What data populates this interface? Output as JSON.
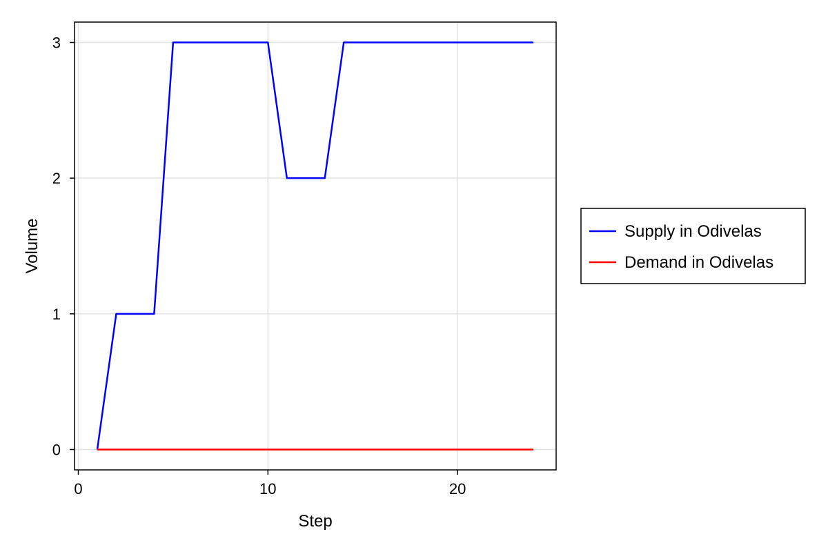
{
  "chart_data": {
    "type": "line",
    "xlabel": "Step",
    "ylabel": "Volume",
    "xlim": [
      -0.2,
      25.2
    ],
    "ylim": [
      -0.15,
      3.15
    ],
    "xticks": [
      0,
      10,
      20
    ],
    "yticks": [
      0,
      1,
      2,
      3
    ],
    "grid": true,
    "legend_position": "right",
    "series": [
      {
        "name": "Supply in Odivelas",
        "color": "#0000ff",
        "x": [
          1,
          2,
          3,
          4,
          5,
          6,
          7,
          8,
          9,
          10,
          11,
          12,
          13,
          14,
          15,
          16,
          17,
          18,
          19,
          20,
          21,
          22,
          23,
          24
        ],
        "y": [
          0,
          1,
          1,
          1,
          3,
          3,
          3,
          3,
          3,
          3,
          2,
          2,
          2,
          3,
          3,
          3,
          3,
          3,
          3,
          3,
          3,
          3,
          3,
          3
        ]
      },
      {
        "name": "Demand in Odivelas",
        "color": "#ff0000",
        "x": [
          1,
          2,
          3,
          4,
          5,
          6,
          7,
          8,
          9,
          10,
          11,
          12,
          13,
          14,
          15,
          16,
          17,
          18,
          19,
          20,
          21,
          22,
          23,
          24
        ],
        "y": [
          0,
          0,
          0,
          0,
          0,
          0,
          0,
          0,
          0,
          0,
          0,
          0,
          0,
          0,
          0,
          0,
          0,
          0,
          0,
          0,
          0,
          0,
          0,
          0
        ]
      }
    ]
  }
}
